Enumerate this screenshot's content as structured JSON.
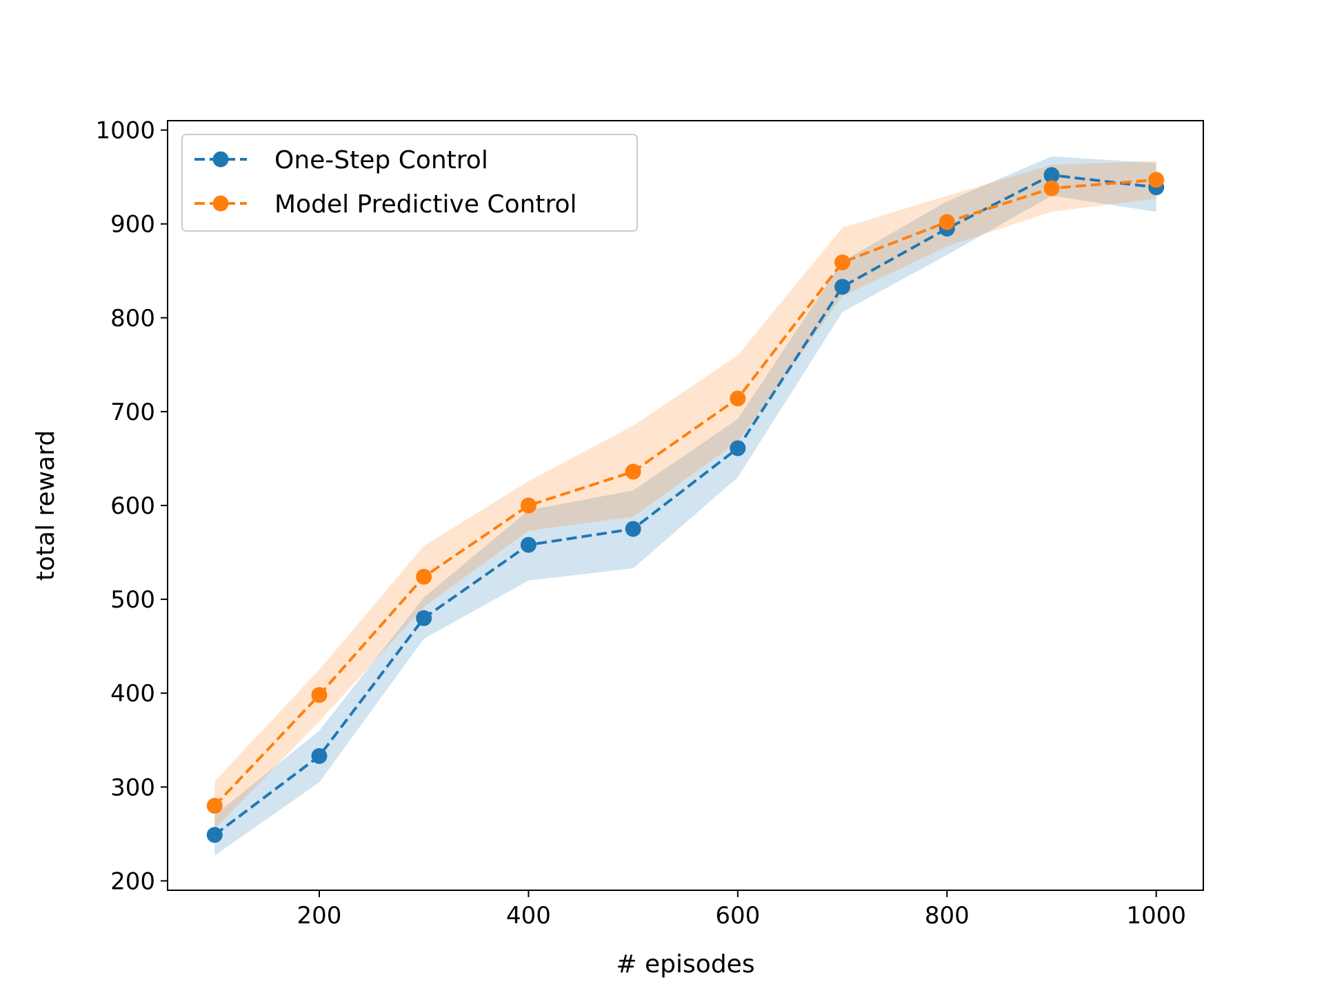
{
  "chart_data": {
    "type": "line",
    "xlabel": "# episodes",
    "ylabel": "total reward",
    "xlim": [
      55,
      1045
    ],
    "ylim": [
      190,
      1010
    ],
    "xticks": [
      200,
      400,
      600,
      800,
      1000
    ],
    "yticks": [
      200,
      300,
      400,
      500,
      600,
      700,
      800,
      900,
      1000
    ],
    "xtick_labels": [
      "200",
      "400",
      "600",
      "800",
      "1000"
    ],
    "ytick_labels": [
      "200",
      "300",
      "400",
      "500",
      "600",
      "700",
      "800",
      "900",
      "1000"
    ],
    "legend_position": "upper-left",
    "grid": false,
    "x": [
      100,
      200,
      300,
      400,
      500,
      600,
      700,
      800,
      900,
      1000
    ],
    "series": [
      {
        "name": "One-Step Control",
        "color": "#1f77b4",
        "values": [
          249,
          333,
          480,
          558,
          575,
          661,
          833,
          895,
          952,
          939
        ],
        "band_lower": [
          227,
          305,
          458,
          520,
          533,
          630,
          806,
          867,
          930,
          913
        ],
        "band_upper": [
          270,
          360,
          502,
          595,
          616,
          692,
          860,
          924,
          972,
          965
        ]
      },
      {
        "name": "Model Predictive Control",
        "color": "#ff7f0e",
        "values": [
          280,
          398,
          524,
          600,
          636,
          714,
          859,
          902,
          938,
          947
        ],
        "band_lower": [
          255,
          370,
          492,
          573,
          588,
          668,
          823,
          876,
          913,
          927
        ],
        "band_upper": [
          306,
          425,
          557,
          626,
          685,
          760,
          896,
          930,
          963,
          967
        ]
      }
    ]
  }
}
